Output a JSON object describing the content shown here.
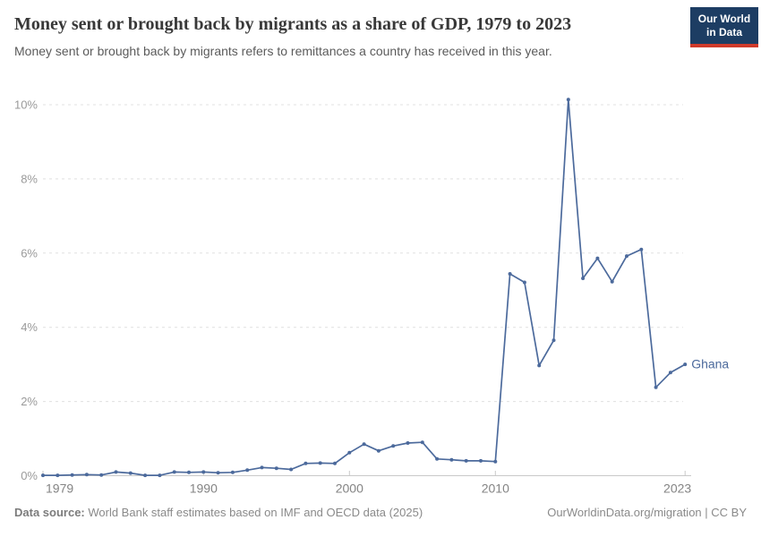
{
  "header": {
    "title": "Money sent or brought back by migrants as a share of GDP, 1979 to 2023",
    "subtitle": "Money sent or brought back by migrants refers to remittances a country has received in this year.",
    "logo": {
      "line1": "Our World",
      "line2": "in Data",
      "bg_color": "#1d3d63",
      "accent_color": "#cf3a2a"
    }
  },
  "chart_data": {
    "type": "line",
    "title": "Money sent or brought back by migrants as a share of GDP, 1979 to 2023",
    "xlabel": "",
    "ylabel": "",
    "xlim": [
      1979,
      2023
    ],
    "ylim": [
      0,
      10.5
    ],
    "grid": "horizontal-dashed",
    "x_ticks": [
      1979,
      1990,
      2000,
      2010,
      2023
    ],
    "y_ticks": [
      {
        "value": 0,
        "label": "0%"
      },
      {
        "value": 2,
        "label": "2%"
      },
      {
        "value": 4,
        "label": "4%"
      },
      {
        "value": 6,
        "label": "6%"
      },
      {
        "value": 8,
        "label": "8%"
      },
      {
        "value": 10,
        "label": "10%"
      }
    ],
    "series": [
      {
        "name": "Ghana",
        "color": "#4c6a9c",
        "x": [
          1979,
          1980,
          1981,
          1982,
          1983,
          1984,
          1985,
          1986,
          1987,
          1988,
          1989,
          1990,
          1991,
          1992,
          1993,
          1994,
          1995,
          1996,
          1997,
          1998,
          1999,
          2000,
          2001,
          2002,
          2003,
          2004,
          2005,
          2006,
          2007,
          2008,
          2009,
          2010,
          2011,
          2012,
          2013,
          2014,
          2015,
          2016,
          2017,
          2018,
          2019,
          2020,
          2021,
          2022,
          2023
        ],
        "values": [
          0.01,
          0.01,
          0.02,
          0.03,
          0.02,
          0.1,
          0.07,
          0.01,
          0.01,
          0.1,
          0.09,
          0.1,
          0.08,
          0.09,
          0.15,
          0.22,
          0.2,
          0.17,
          0.33,
          0.34,
          0.33,
          0.62,
          0.85,
          0.67,
          0.8,
          0.88,
          0.9,
          0.45,
          0.43,
          0.4,
          0.4,
          0.38,
          5.44,
          5.21,
          2.97,
          3.65,
          10.14,
          5.32,
          5.86,
          5.23,
          5.92,
          6.1,
          2.38,
          2.78,
          3.0
        ]
      }
    ]
  },
  "footer": {
    "source_label": "Data source:",
    "source_text": " World Bank staff estimates based on IMF and OECD data (2025)",
    "link_text": "OurWorldinData.org/migration | CC BY"
  }
}
